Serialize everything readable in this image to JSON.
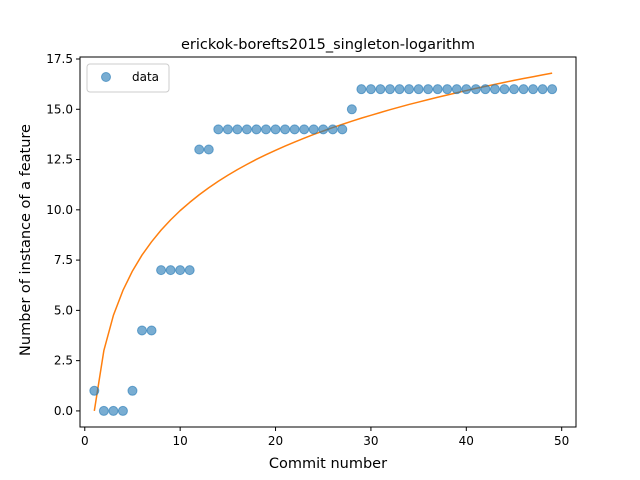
{
  "chart_data": {
    "type": "scatter",
    "title": "erickok-borefts2015_singleton-logarithm",
    "xlabel": "Commit number",
    "ylabel": "Number of instance of a feature",
    "xlim": [
      -0.5,
      51.5
    ],
    "ylim": [
      -0.8,
      17.6
    ],
    "xticks": [
      0,
      10,
      20,
      30,
      40,
      50
    ],
    "xtick_labels": [
      "0",
      "10",
      "20",
      "30",
      "40",
      "50"
    ],
    "yticks": [
      0.0,
      2.5,
      5.0,
      7.5,
      10.0,
      12.5,
      15.0,
      17.5
    ],
    "ytick_labels": [
      "0.0",
      "2.5",
      "5.0",
      "7.5",
      "10.0",
      "12.5",
      "15.0",
      "17.5"
    ],
    "grid": false,
    "legend": {
      "placement": "top-left",
      "entries": [
        "data"
      ]
    },
    "series": [
      {
        "name": "data",
        "kind": "scatter",
        "color": "#1f77b4",
        "x": [
          1,
          2,
          3,
          4,
          5,
          6,
          7,
          8,
          9,
          10,
          11,
          12,
          13,
          14,
          15,
          16,
          17,
          18,
          19,
          20,
          21,
          22,
          23,
          24,
          25,
          26,
          27,
          28,
          29,
          30,
          31,
          32,
          33,
          34,
          35,
          36,
          37,
          38,
          39,
          40,
          41,
          42,
          43,
          44,
          45,
          46,
          47,
          48,
          49
        ],
        "y": [
          1,
          0,
          0,
          0,
          1,
          4,
          4,
          7,
          7,
          7,
          7,
          13,
          13,
          14,
          14,
          14,
          14,
          14,
          14,
          14,
          14,
          14,
          14,
          14,
          14,
          14,
          14,
          15,
          16,
          16,
          16,
          16,
          16,
          16,
          16,
          16,
          16,
          16,
          16,
          16,
          16,
          16,
          16,
          16,
          16,
          16,
          16,
          16,
          16
        ]
      },
      {
        "kind": "line",
        "color": "#ff7f0e",
        "x": [
          1,
          2,
          3,
          4,
          5,
          6,
          7,
          8,
          9,
          10,
          11,
          12,
          13,
          14,
          15,
          16,
          17,
          18,
          19,
          20,
          21,
          22,
          23,
          24,
          25,
          26,
          27,
          28,
          29,
          30,
          31,
          32,
          33,
          34,
          35,
          36,
          37,
          38,
          39,
          40,
          41,
          42,
          43,
          44,
          45,
          46,
          47,
          48,
          49
        ],
        "y": [
          0.0,
          3.0,
          4.75,
          5.99,
          6.96,
          7.75,
          8.41,
          8.99,
          9.5,
          9.96,
          10.37,
          10.75,
          11.1,
          11.42,
          11.72,
          12.0,
          12.26,
          12.51,
          12.74,
          12.96,
          13.17,
          13.37,
          13.56,
          13.75,
          13.92,
          14.09,
          14.25,
          14.41,
          14.56,
          14.7,
          14.84,
          14.98,
          15.11,
          15.24,
          15.36,
          15.48,
          15.6,
          15.71,
          15.82,
          15.93,
          16.04,
          16.14,
          16.24,
          16.34,
          16.44,
          16.53,
          16.62,
          16.71,
          16.8
        ]
      }
    ]
  }
}
